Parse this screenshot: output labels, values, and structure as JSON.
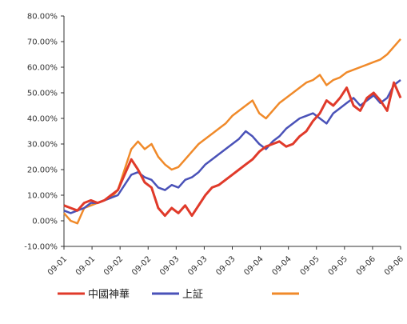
{
  "chart_data": {
    "type": "line",
    "title": "",
    "xlabel": "",
    "ylabel": "",
    "ylim": [
      -0.1,
      0.8
    ],
    "y_ticks": [
      "-10.00%",
      "0.00%",
      "10.00%",
      "20.00%",
      "30.00%",
      "40.00%",
      "50.00%",
      "60.00%",
      "70.00%",
      "80.00%"
    ],
    "x_ticks": [
      "09-01",
      "09-01",
      "09-02",
      "09-02",
      "09-03",
      "09-03",
      "09-03",
      "09-04",
      "09-04",
      "09-05",
      "09-05",
      "09-06",
      "09-06"
    ],
    "grid": false,
    "legend_position": "bottom",
    "x": [
      0,
      2,
      4,
      6,
      8,
      10,
      12,
      14,
      16,
      18,
      20,
      22,
      24,
      26,
      28,
      30,
      32,
      34,
      36,
      38,
      40,
      42,
      44,
      46,
      48,
      50,
      52,
      54,
      56,
      58,
      60,
      62,
      64,
      66,
      68,
      70,
      72,
      74,
      76,
      78,
      80,
      82,
      84,
      86,
      88,
      90,
      92,
      94,
      96,
      98,
      100
    ],
    "series": [
      {
        "name": "中國神華",
        "color": "#e03a2a",
        "values": [
          0.06,
          0.05,
          0.04,
          0.07,
          0.08,
          0.07,
          0.08,
          0.1,
          0.12,
          0.18,
          0.24,
          0.2,
          0.15,
          0.13,
          0.05,
          0.02,
          0.05,
          0.03,
          0.06,
          0.02,
          0.06,
          0.1,
          0.13,
          0.14,
          0.16,
          0.18,
          0.2,
          0.22,
          0.24,
          0.27,
          0.29,
          0.3,
          0.31,
          0.29,
          0.3,
          0.33,
          0.35,
          0.39,
          0.42,
          0.47,
          0.45,
          0.48,
          0.52,
          0.45,
          0.43,
          0.48,
          0.5,
          0.47,
          0.43,
          0.54,
          0.48
        ]
      },
      {
        "name": "上証",
        "color": "#4a52b8",
        "values": [
          0.04,
          0.03,
          0.04,
          0.05,
          0.07,
          0.07,
          0.08,
          0.09,
          0.1,
          0.14,
          0.18,
          0.19,
          0.17,
          0.16,
          0.13,
          0.12,
          0.14,
          0.13,
          0.16,
          0.17,
          0.19,
          0.22,
          0.24,
          0.26,
          0.28,
          0.3,
          0.32,
          0.35,
          0.33,
          0.3,
          0.28,
          0.31,
          0.33,
          0.36,
          0.38,
          0.4,
          0.41,
          0.42,
          0.4,
          0.38,
          0.42,
          0.44,
          0.46,
          0.48,
          0.45,
          0.47,
          0.49,
          0.46,
          0.48,
          0.53,
          0.55
        ]
      },
      {
        "name": "",
        "color": "#f08a2a",
        "values": [
          0.03,
          0.0,
          -0.01,
          0.05,
          0.06,
          0.07,
          0.08,
          0.09,
          0.12,
          0.2,
          0.28,
          0.31,
          0.28,
          0.3,
          0.25,
          0.22,
          0.2,
          0.21,
          0.24,
          0.27,
          0.3,
          0.32,
          0.34,
          0.36,
          0.38,
          0.41,
          0.43,
          0.45,
          0.47,
          0.42,
          0.4,
          0.43,
          0.46,
          0.48,
          0.5,
          0.52,
          0.54,
          0.55,
          0.57,
          0.53,
          0.55,
          0.56,
          0.58,
          0.59,
          0.6,
          0.61,
          0.62,
          0.63,
          0.65,
          0.68,
          0.71
        ]
      }
    ]
  },
  "legend": {
    "items": [
      {
        "label": "中國神華",
        "color": "#e03a2a"
      },
      {
        "label": "上証",
        "color": "#4a52b8"
      },
      {
        "label": "",
        "color": "#f08a2a"
      }
    ]
  }
}
